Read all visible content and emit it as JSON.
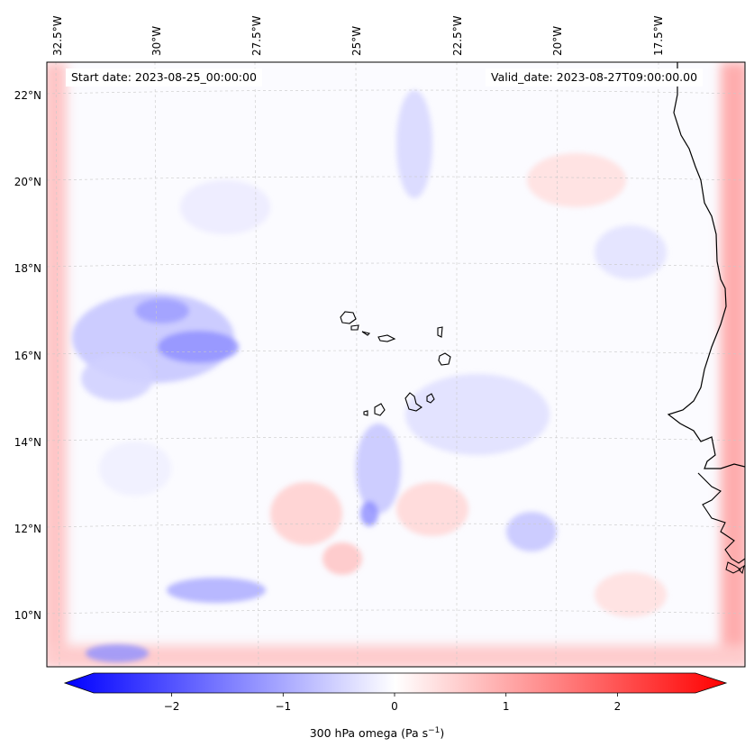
{
  "header": {
    "start_label": "Start date: 2023-08-25_00:00:00",
    "valid_label": "Valid_date: 2023-08-27T09:00:00.00"
  },
  "longitude_ticks": [
    "32.5°W",
    "30°W",
    "27.5°W",
    "25°W",
    "22.5°W",
    "20°W",
    "17.5°W"
  ],
  "latitude_ticks": [
    "22°N",
    "20°N",
    "18°N",
    "16°N",
    "14°N",
    "12°N",
    "10°N"
  ],
  "colorbar": {
    "ticks": [
      "−2",
      "−1",
      "0",
      "1",
      "2"
    ],
    "tick_values": [
      -2,
      -1,
      0,
      1,
      2
    ],
    "range": [
      -2.7,
      2.7
    ],
    "label": "300 hPa omega (Pa s",
    "label_sup": "−1",
    "label_close": ")",
    "colormap": "bwr",
    "color_min": "#0000ff",
    "color_mid": "#ffffff",
    "color_max": "#ff0000"
  },
  "map": {
    "coastline_color": "#000000",
    "gridlines": "dashed light gray"
  }
}
